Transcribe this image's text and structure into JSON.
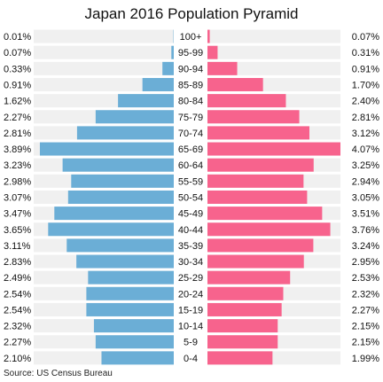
{
  "chart_data": {
    "type": "bar",
    "title": "Japan 2016 Population Pyramid",
    "categories": [
      "100+",
      "95-99",
      "90-94",
      "85-89",
      "80-84",
      "75-79",
      "70-74",
      "65-69",
      "60-64",
      "55-59",
      "50-54",
      "45-49",
      "40-44",
      "35-39",
      "30-34",
      "25-29",
      "20-24",
      "15-19",
      "10-14",
      "5-9",
      "0-4"
    ],
    "series": [
      {
        "side": "left",
        "color": "#6baed6",
        "values": [
          0.01,
          0.07,
          0.33,
          0.91,
          1.62,
          2.27,
          2.81,
          3.89,
          3.23,
          2.98,
          3.07,
          3.47,
          3.65,
          3.11,
          2.83,
          2.49,
          2.54,
          2.54,
          2.32,
          2.27,
          2.1
        ],
        "labels": [
          "0.01%",
          "0.07%",
          "0.33%",
          "0.91%",
          "1.62%",
          "2.27%",
          "2.81%",
          "3.89%",
          "3.23%",
          "2.98%",
          "3.07%",
          "3.47%",
          "3.65%",
          "3.11%",
          "2.83%",
          "2.49%",
          "2.54%",
          "2.54%",
          "2.32%",
          "2.27%",
          "2.10%"
        ]
      },
      {
        "side": "right",
        "color": "#f7638d",
        "values": [
          0.07,
          0.31,
          0.91,
          1.7,
          2.4,
          2.81,
          3.12,
          4.07,
          3.25,
          2.94,
          3.05,
          3.51,
          3.76,
          3.24,
          2.95,
          2.53,
          2.32,
          2.27,
          2.15,
          2.15,
          1.99
        ],
        "labels": [
          "0.07%",
          "0.31%",
          "0.91%",
          "1.70%",
          "2.40%",
          "2.81%",
          "3.12%",
          "4.07%",
          "3.25%",
          "2.94%",
          "3.05%",
          "3.51%",
          "3.76%",
          "3.24%",
          "2.95%",
          "2.53%",
          "2.32%",
          "2.27%",
          "2.15%",
          "2.15%",
          "1.99%"
        ]
      }
    ],
    "xlim": [
      0,
      4.07
    ],
    "grid": false,
    "legend": "none",
    "row_background_color": "#f0f0f0"
  },
  "source": "Source: US Census Bureau"
}
